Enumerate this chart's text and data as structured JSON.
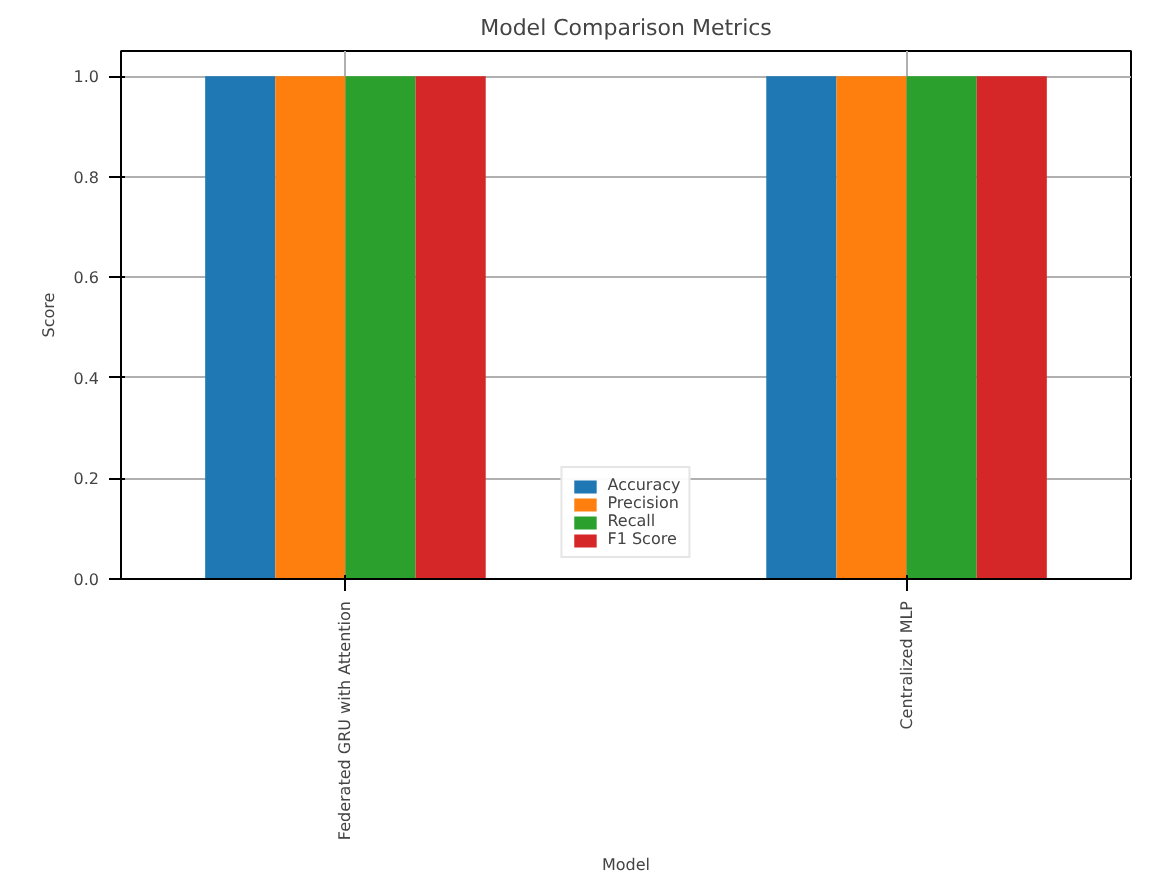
{
  "chart_data": {
    "type": "bar",
    "title": "Model Comparison Metrics",
    "xlabel": "Model",
    "ylabel": "Score",
    "categories": [
      "Federated GRU with Attention",
      "Centralized MLP"
    ],
    "series": [
      {
        "name": "Accuracy",
        "color": "#1f77b4",
        "values": [
          1.0,
          1.0
        ]
      },
      {
        "name": "Precision",
        "color": "#ff7f0e",
        "values": [
          1.0,
          1.0
        ]
      },
      {
        "name": "Recall",
        "color": "#2ca02c",
        "values": [
          1.0,
          1.0
        ]
      },
      {
        "name": "F1 Score",
        "color": "#d62728",
        "values": [
          1.0,
          1.0
        ]
      }
    ],
    "ylim": [
      0,
      1.05
    ],
    "yticks": [
      {
        "value": 0,
        "label": "0.0"
      },
      0.2,
      0.4,
      0.6,
      0.8,
      {
        "value": 1,
        "label": "1.0"
      }
    ],
    "grid": true,
    "legend": "bottom"
  }
}
